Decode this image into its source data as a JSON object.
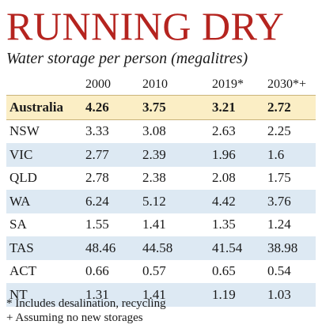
{
  "title": "RUNNING DRY",
  "subtitle": "Water storage per person (megalitres)",
  "chart_data": {
    "type": "table",
    "columns": [
      "2000",
      "2010",
      "2019*",
      "2030*+"
    ],
    "rows": [
      {
        "label": "Australia",
        "values": [
          "4.26",
          "3.75",
          "3.21",
          "2.72"
        ],
        "style": "highlight"
      },
      {
        "label": "NSW",
        "values": [
          "3.33",
          "3.08",
          "2.63",
          "2.25"
        ],
        "style": "white"
      },
      {
        "label": "VIC",
        "values": [
          "2.77",
          "2.39",
          "1.96",
          "1.6"
        ],
        "style": "blue"
      },
      {
        "label": "QLD",
        "values": [
          "2.78",
          "2.38",
          "2.08",
          "1.75"
        ],
        "style": "white"
      },
      {
        "label": "WA",
        "values": [
          "6.24",
          "5.12",
          "4.42",
          "3.76"
        ],
        "style": "blue"
      },
      {
        "label": "SA",
        "values": [
          "1.55",
          "1.41",
          "1.35",
          "1.24"
        ],
        "style": "white"
      },
      {
        "label": "TAS",
        "values": [
          "48.46",
          "44.58",
          "41.54",
          "38.98"
        ],
        "style": "blue"
      },
      {
        "label": "ACT",
        "values": [
          "0.66",
          "0.57",
          "0.65",
          "0.54"
        ],
        "style": "white"
      },
      {
        "label": "NT",
        "values": [
          "1.31",
          "1.41",
          "1.19",
          "1.03"
        ],
        "style": "blue"
      }
    ]
  },
  "notes": [
    "* Includes desalination, recycling",
    "+ Assuming no new storages"
  ],
  "colors": {
    "title": "#b5241f",
    "highlight_row": "#fbeec5",
    "alt_row": "#dde9f3"
  }
}
